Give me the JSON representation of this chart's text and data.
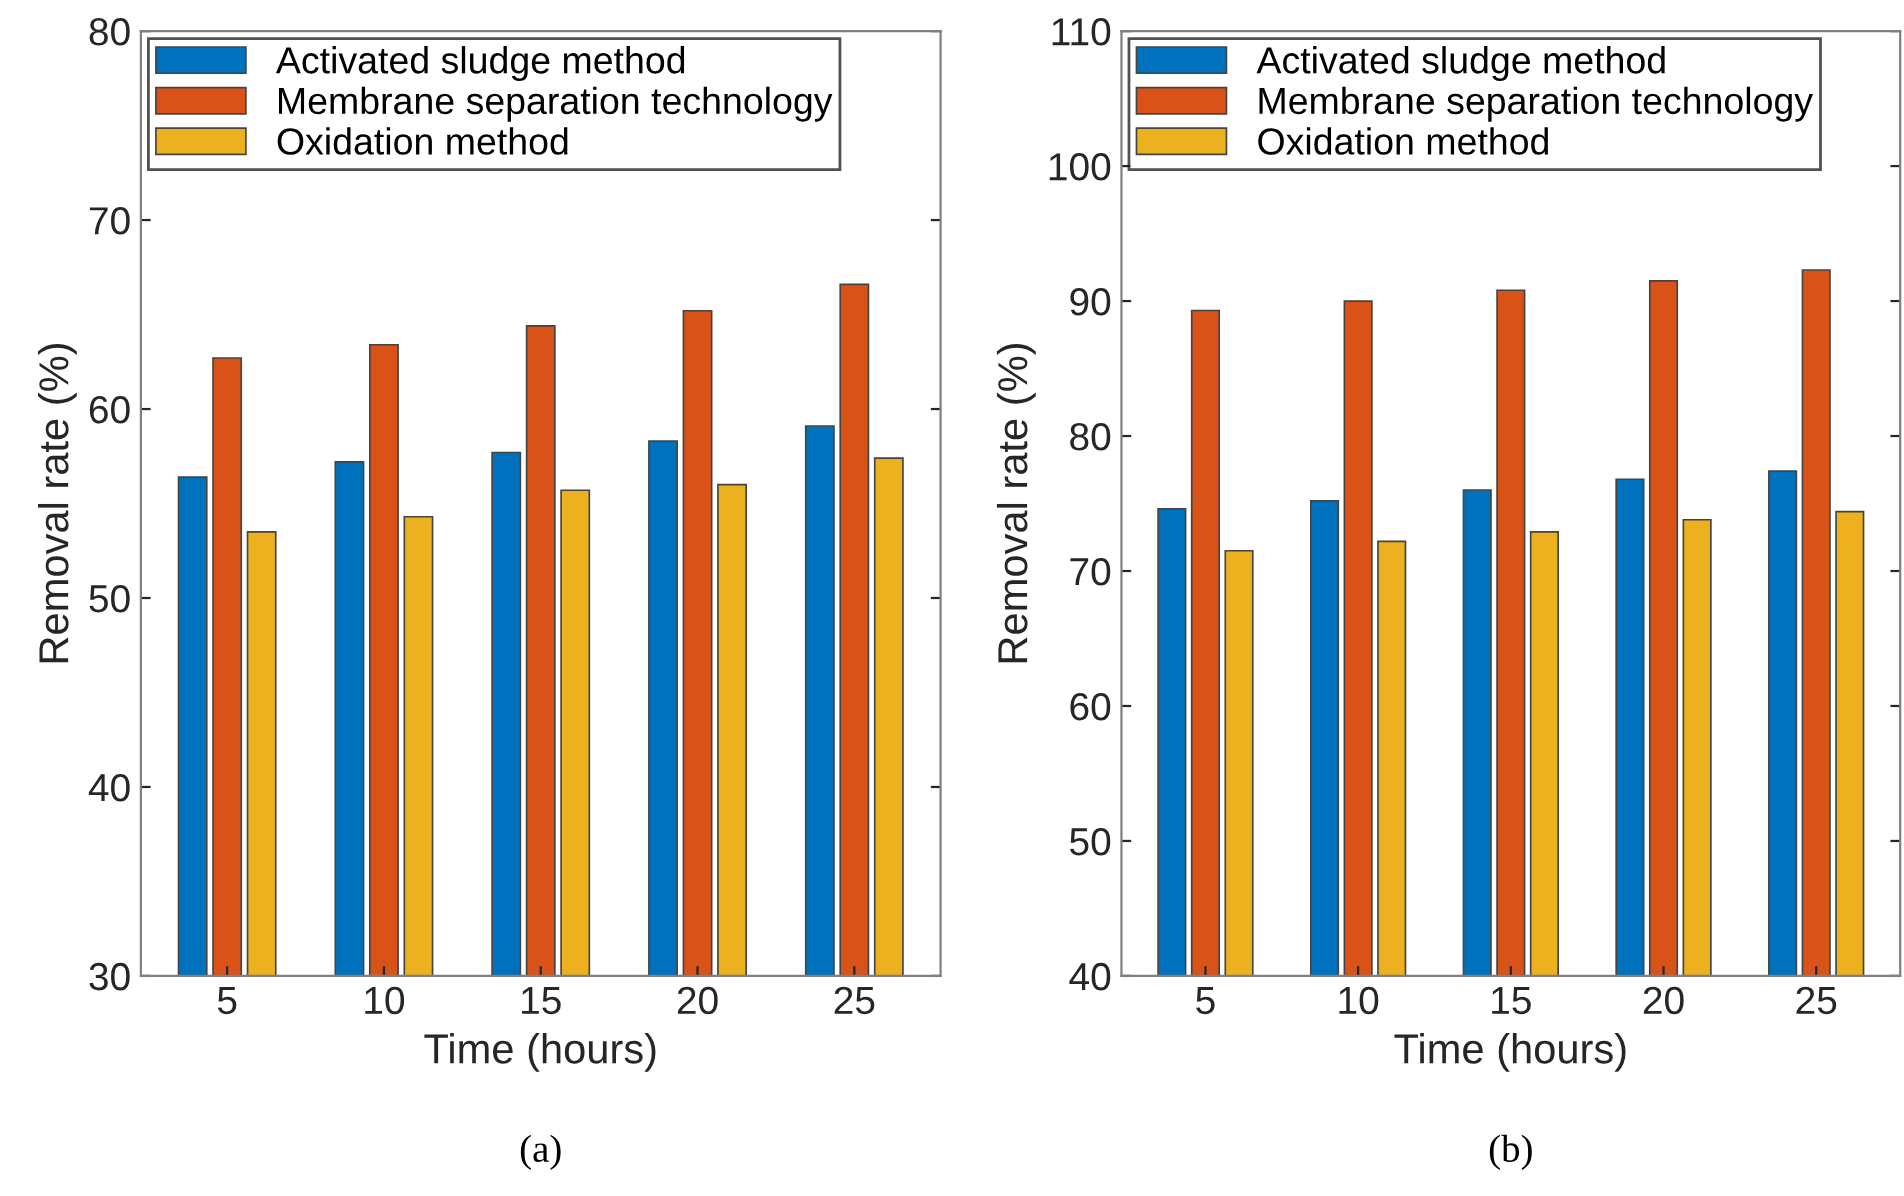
{
  "chart_data": [
    {
      "type": "bar",
      "categories": [
        "5",
        "10",
        "15",
        "20",
        "25"
      ],
      "xlabel": "Time (hours)",
      "ylabel": "Removal rate (%)",
      "ylim": [
        30,
        80
      ],
      "yticks": [
        30,
        40,
        50,
        60,
        70,
        80
      ],
      "grid": false,
      "legend": "top left",
      "annotations": [
        "(a)"
      ],
      "series": [
        {
          "name": "Activated sludge method",
          "color": "#0072bd",
          "values": [
            56.4,
            57.2,
            57.7,
            58.3,
            59.1
          ]
        },
        {
          "name": "Membrane separation technology",
          "color": "#d95319",
          "values": [
            62.7,
            63.4,
            64.4,
            65.2,
            66.6
          ]
        },
        {
          "name": "Oxidation method",
          "color": "#edb120",
          "values": [
            53.5,
            54.3,
            55.7,
            56.0,
            57.4
          ]
        }
      ]
    },
    {
      "type": "bar",
      "categories": [
        "5",
        "10",
        "15",
        "20",
        "25"
      ],
      "xlabel": "Time (hours)",
      "ylabel": "Removal rate (%)",
      "ylim": [
        40,
        110
      ],
      "yticks": [
        40,
        50,
        60,
        70,
        80,
        90,
        100,
        110
      ],
      "grid": false,
      "legend": "top left",
      "annotations": [
        "(b)"
      ],
      "series": [
        {
          "name": "Activated sludge method",
          "color": "#0072bd",
          "values": [
            74.6,
            75.2,
            76.0,
            76.8,
            77.4
          ]
        },
        {
          "name": "Membrane separation technology",
          "color": "#d95319",
          "values": [
            89.3,
            90.0,
            90.8,
            91.5,
            92.3
          ]
        },
        {
          "name": "Oxidation method",
          "color": "#edb120",
          "values": [
            71.5,
            72.2,
            72.9,
            73.8,
            74.4
          ]
        }
      ]
    }
  ]
}
